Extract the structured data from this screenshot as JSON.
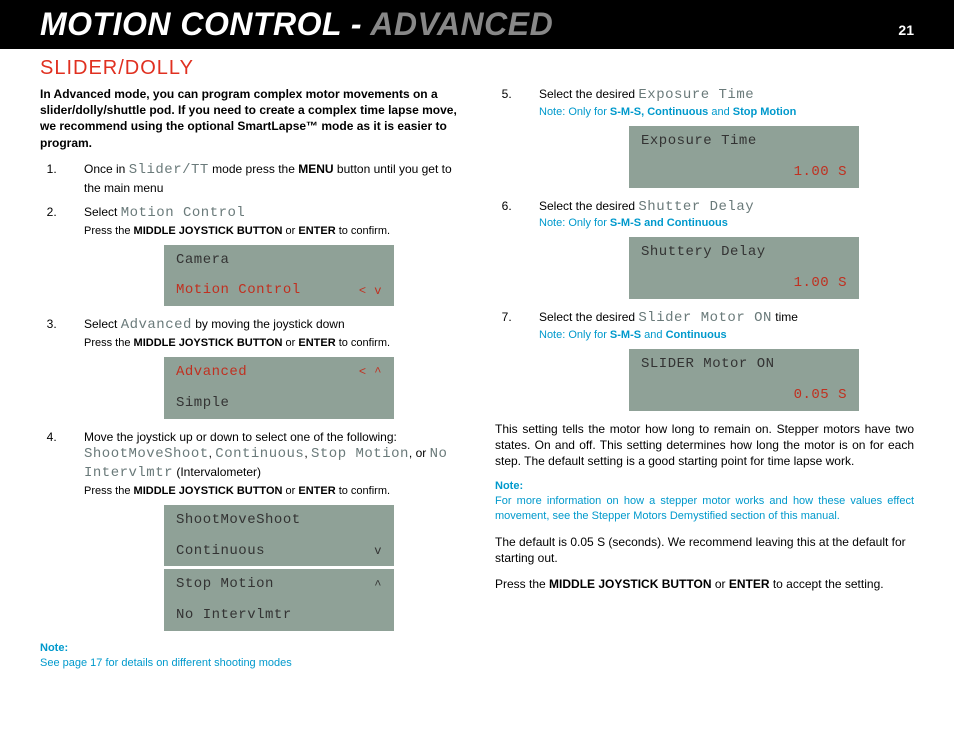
{
  "header": {
    "title_main": "MOTION CONTROL - ",
    "title_adv": "ADVANCED",
    "page_number": "21"
  },
  "section_title": "SLIDER/DOLLY",
  "left": {
    "intro": "In Advanced mode, you can program complex motor movements on a slider/dolly/shuttle pod. If you need to create a complex time lapse move, we recommend using the optional SmartLapse™ mode as it is easier to program.",
    "step1_a": "Once in ",
    "step1_term": "Slider/TT",
    "step1_b": "  mode press the ",
    "step1_c": " button until you get to the main menu",
    "menu_word": "MENU",
    "step2_a": "Select ",
    "step2_term": "Motion Control",
    "step2_sub_a": "Press the ",
    "mjb": "MIDDLE JOYSTICK BUTTON",
    "enter": "ENTER",
    "step2_sub_b": " or ",
    "step2_sub_c": " to confirm.",
    "lcd1_r1": "Camera",
    "lcd1_r2": "Motion Control",
    "lcd1_arrow": "<  v",
    "step3_a": "Select  ",
    "step3_term": "Advanced",
    "step3_b": " by moving the joystick down",
    "lcd2_r1": "Advanced",
    "lcd2_arrow": "<  ^",
    "lcd2_r2": "Simple",
    "step4_a": "Move the joystick up or down to select one of the following: ",
    "step4_t1": "ShootMoveShoot",
    "step4_t2": "Continuous",
    "step4_t3": "Stop Motion",
    "step4_or": ", or ",
    "step4_t4": "No Intervlmtr",
    "step4_paren": " (Intervalometer)",
    "lcd3_r1": "ShootMoveShoot",
    "lcd3_r2": "Continuous",
    "lcd3_a2": "v",
    "lcd3_r3": "Stop Motion",
    "lcd3_a3": "^",
    "lcd3_r4": "No Intervlmtr",
    "note_label": "Note:",
    "left_note": "See page 17 for details on different shooting modes"
  },
  "right": {
    "step5_a": "Select the desired ",
    "step5_term": "Exposure Time",
    "step5_note": "Note: Only for ",
    "step5_note_b": "S-M-S, Continuous",
    "step5_note_c": " and ",
    "step5_note_d": "Stop Motion",
    "lcd5_r1": "Exposure Time",
    "lcd5_val": "1.00 S",
    "step6_a": "Select the desired ",
    "step6_term": "Shutter Delay",
    "step6_note_b": "S-M-S and Continuous",
    "lcd6_r1": "Shuttery Delay",
    "lcd6_val": "1.00 S",
    "step7_a": "Select the desired ",
    "step7_term": "Slider Motor ON",
    "step7_b": " time",
    "step7_note_b": "S-M-S",
    "step7_note_c": " and ",
    "step7_note_d": "Continuous",
    "lcd7_r1": "SLIDER Motor ON",
    "lcd7_val": "0.05 S",
    "para1": "This setting tells the motor how long to remain on. Stepper motors have two states. On and off. This setting determines how long the motor is on for each step. The default setting is a good starting point for time lapse work.",
    "rnote": "For more information on how a stepper motor works and how these values effect movement, see the Stepper Motors Demystified section of this manual.",
    "para2": "The default is 0.05 S (seconds). We recommend leaving this at the default for starting out.",
    "para3_a": "Press the ",
    "para3_b": " or ",
    "para3_c": " to accept the setting."
  }
}
